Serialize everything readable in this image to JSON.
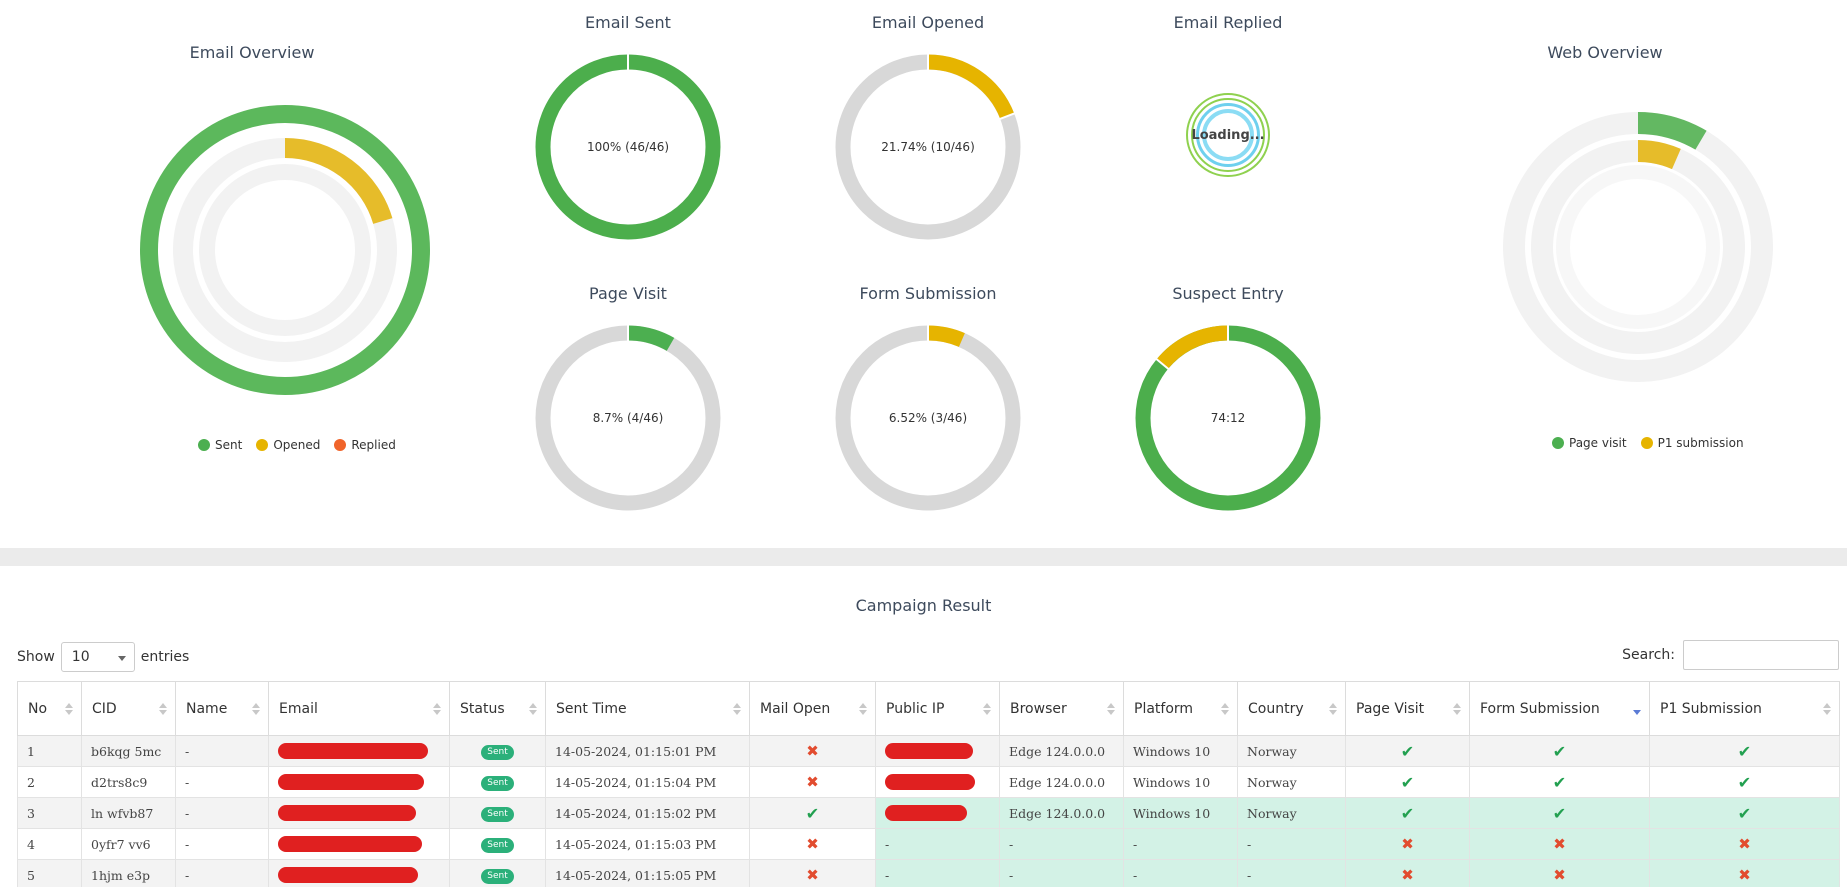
{
  "colors": {
    "green": "#4caf50",
    "yellow": "#e6b400",
    "orange": "#f0642a",
    "track": "#dcdcdc",
    "track_light": "#f2f2f2",
    "sent_badge": "#2bb07a",
    "highlight_row": "#d3f2e6"
  },
  "email_overview": {
    "title": "Email Overview",
    "legend": [
      {
        "label": "Sent",
        "color": "#4caf50"
      },
      {
        "label": "Opened",
        "color": "#e6b400"
      },
      {
        "label": "Replied",
        "color": "#f0642a"
      }
    ]
  },
  "email_sent": {
    "title": "Email Sent",
    "label": "100% (46/46)",
    "fraction": 1.0
  },
  "email_opened": {
    "title": "Email Opened",
    "label": "21.74% (10/46)",
    "fraction": 0.2174
  },
  "email_replied": {
    "title": "Email Replied",
    "loading_text": "Loading..."
  },
  "page_visit": {
    "title": "Page Visit",
    "label": "8.7% (4/46)",
    "fraction": 0.087
  },
  "form_submission": {
    "title": "Form Submission",
    "label": "6.52% (3/46)",
    "fraction": 0.0652
  },
  "suspect_entry": {
    "title": "Suspect Entry",
    "label": "74:12",
    "values": [
      74,
      12
    ]
  },
  "web_overview": {
    "title": "Web Overview",
    "legend": [
      {
        "label": "Page visit",
        "color": "#4caf50"
      },
      {
        "label": "P1 submission",
        "color": "#e6b400"
      }
    ]
  },
  "campaign": {
    "title": "Campaign Result",
    "show_label": "Show",
    "entries_value": "10",
    "entries_label": "entries",
    "search_label": "Search:",
    "search_value": "",
    "columns": [
      "No",
      "CID",
      "Name",
      "Email",
      "Status",
      "Sent Time",
      "Mail Open",
      "Public IP",
      "Browser",
      "Platform",
      "Country",
      "Page Visit",
      "Form Submission",
      "P1 Submission"
    ],
    "rows": [
      {
        "no": "1",
        "cid": "b6kqg 5mc",
        "name": "-",
        "status": "Sent",
        "sent_time": "14-05-2024, 01:15:01 PM",
        "mail_open": "x",
        "browser": "Edge 124.0.0.0",
        "platform": "Windows 10",
        "country": "Norway",
        "page_visit": "check",
        "form_submission": "check",
        "p1_submission": "check",
        "highlight": false
      },
      {
        "no": "2",
        "cid": "d2trs8c9",
        "name": "-",
        "status": "Sent",
        "sent_time": "14-05-2024, 01:15:04 PM",
        "mail_open": "x",
        "browser": "Edge 124.0.0.0",
        "platform": "Windows 10",
        "country": "Norway",
        "page_visit": "check",
        "form_submission": "check",
        "p1_submission": "check",
        "highlight": false
      },
      {
        "no": "3",
        "cid": "ln wfvb87",
        "name": "-",
        "status": "Sent",
        "sent_time": "14-05-2024, 01:15:02 PM",
        "mail_open": "check",
        "browser": "Edge 124.0.0.0",
        "platform": "Windows 10",
        "country": "Norway",
        "page_visit": "check",
        "form_submission": "check",
        "p1_submission": "check",
        "highlight": true
      },
      {
        "no": "4",
        "cid": "0yfr7 vv6",
        "name": "-",
        "status": "Sent",
        "sent_time": "14-05-2024, 01:15:03 PM",
        "mail_open": "x",
        "public_ip": "-",
        "browser": "-",
        "platform": "-",
        "country": "-",
        "page_visit": "x",
        "form_submission": "x",
        "p1_submission": "x",
        "highlight": true
      },
      {
        "no": "5",
        "cid": "1hjm e3p",
        "name": "-",
        "status": "Sent",
        "sent_time": "14-05-2024, 01:15:05 PM",
        "mail_open": "x",
        "public_ip": "-",
        "browser": "-",
        "platform": "-",
        "country": "-",
        "page_visit": "x",
        "form_submission": "x",
        "p1_submission": "x",
        "highlight": true
      }
    ]
  }
}
